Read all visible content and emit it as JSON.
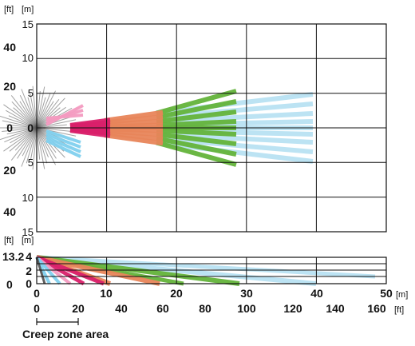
{
  "units": {
    "ft": "[ft]",
    "m": "[m]"
  },
  "top_view": {
    "y_m_labels": [
      "15",
      "10",
      "5",
      "0",
      "5",
      "10",
      "15"
    ],
    "y_ft_labels": [
      "40",
      "20",
      "0",
      "20",
      "40"
    ]
  },
  "side_view": {
    "y_ft_labels": [
      "13.2",
      "0"
    ],
    "y_m_labels": [
      "4",
      "2",
      "0"
    ]
  },
  "x_m_labels": [
    "0",
    "10",
    "20",
    "30",
    "40",
    "50"
  ],
  "x_ft_labels": [
    "0",
    "20",
    "40",
    "60",
    "80",
    "100",
    "120",
    "140",
    "160"
  ],
  "creep_zone_label": "Creep zone area",
  "colors": {
    "creep_gray": "#555555",
    "pink": "#f39ac0",
    "light_blue": "#7fd0ee",
    "magenta": "#d9206a",
    "orange": "#e8855a",
    "green": "#63b33a",
    "pale_blue": "#b8e2f2"
  }
}
